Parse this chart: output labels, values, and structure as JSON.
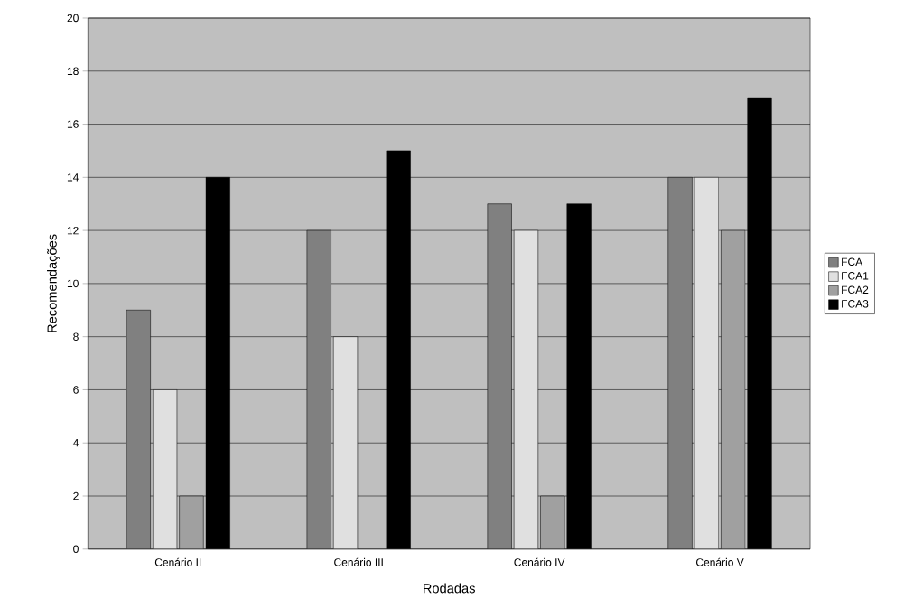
{
  "chart_data": {
    "type": "bar",
    "xlabel": "Rodadas",
    "ylabel": "Recomendações",
    "categories": [
      "Cenário II",
      "Cenário III",
      "Cenário IV",
      "Cenário V"
    ],
    "series": [
      {
        "name": "FCA",
        "color": "#808080",
        "values": [
          9,
          12,
          13,
          14
        ]
      },
      {
        "name": "FCA1",
        "color": "#e0e0e0",
        "values": [
          6,
          8,
          12,
          14
        ]
      },
      {
        "name": "FCA2",
        "color": "#a0a0a0",
        "values": [
          2,
          0,
          2,
          12
        ]
      },
      {
        "name": "FCA3",
        "color": "#000000",
        "values": [
          14,
          15,
          13,
          17
        ]
      }
    ],
    "ylim": [
      0,
      20
    ],
    "yticks": [
      0,
      2,
      4,
      6,
      8,
      10,
      12,
      14,
      16,
      18,
      20
    ],
    "grid": "y",
    "legend": "right"
  }
}
